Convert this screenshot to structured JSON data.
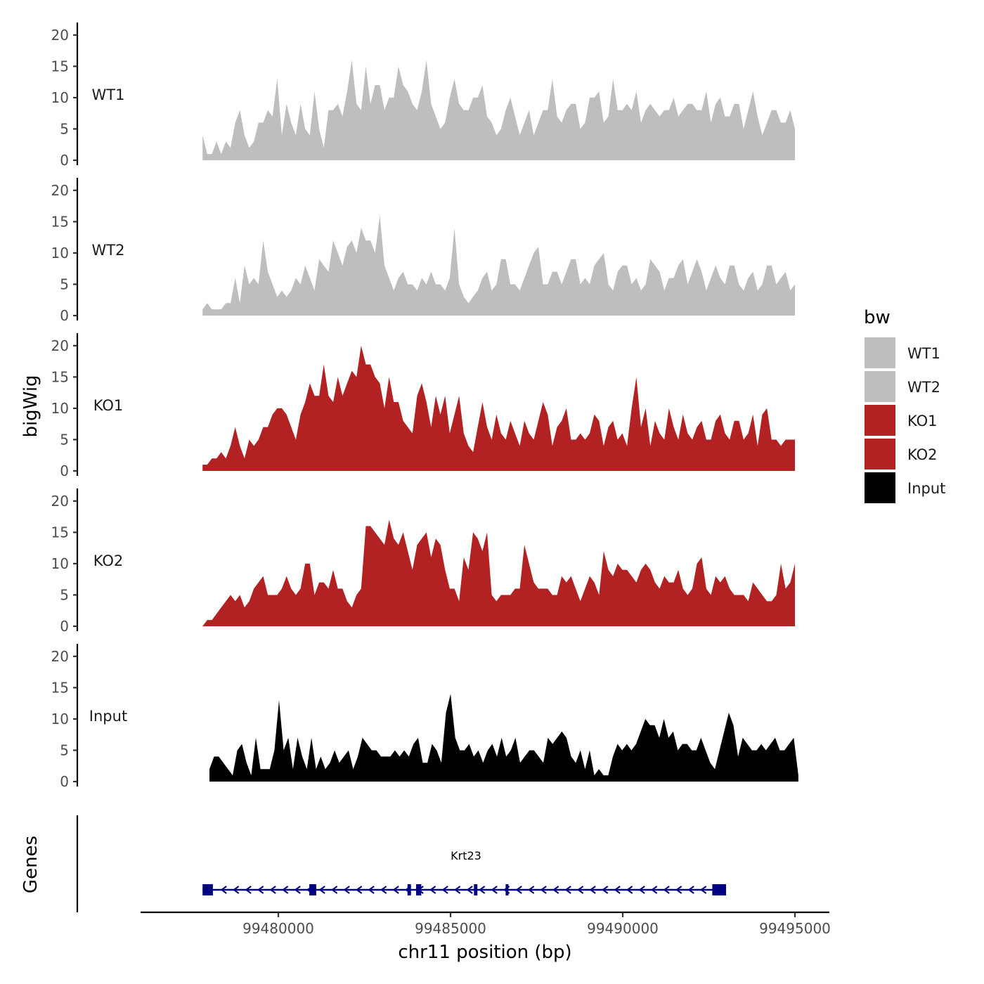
{
  "chart_data": {
    "type": "area",
    "title": "",
    "xlabel": "chr11 position (bp)",
    "ylabel": "bigWig",
    "genes_label": "Genes",
    "xlim": [
      99476000,
      99496000
    ],
    "x_ticks": [
      99480000,
      99485000,
      99490000,
      99495000
    ],
    "x_tick_labels": [
      "99480000",
      "99485000",
      "99490000",
      "99495000"
    ],
    "ylim": [
      0,
      22
    ],
    "y_ticks": [
      0,
      5,
      10,
      15,
      20
    ],
    "y_tick_labels": [
      "0",
      "5",
      "10",
      "15",
      "20"
    ],
    "legend": {
      "title": "bw",
      "position": "right",
      "entries": [
        {
          "label": "WT1",
          "color": "#bebebe"
        },
        {
          "label": "WT2",
          "color": "#bebebe"
        },
        {
          "label": "KO1",
          "color": "#b22222"
        },
        {
          "label": "KO2",
          "color": "#b22222"
        },
        {
          "label": "Input",
          "color": "#000000"
        }
      ]
    },
    "series": [
      {
        "name": "WT1",
        "color": "#bebebe",
        "x_start": 99477800,
        "x_end": 99495000,
        "values": [
          4,
          1,
          1,
          3,
          1,
          3,
          2,
          6,
          8,
          4,
          2,
          3,
          6,
          6,
          8,
          7,
          13,
          4,
          9,
          6,
          4,
          9,
          5,
          4,
          11,
          5,
          2,
          8,
          8,
          9,
          7,
          11,
          16,
          9,
          8,
          15,
          9,
          12,
          12,
          8,
          10,
          10,
          15,
          12,
          11,
          9,
          8,
          11,
          16,
          9,
          7,
          5,
          6,
          10,
          13,
          9,
          8,
          8,
          10,
          10,
          12,
          7,
          6,
          4,
          5,
          8,
          10,
          7,
          4,
          6,
          8,
          4,
          6,
          8,
          8,
          13,
          7,
          6,
          8,
          9,
          9,
          5,
          6,
          10,
          10,
          11,
          6,
          7,
          13,
          8,
          8,
          9,
          8,
          11,
          6,
          8,
          9,
          8,
          7,
          8,
          8,
          10,
          7,
          8,
          9,
          9,
          8,
          8,
          11,
          6,
          9,
          10,
          7,
          7,
          9,
          9,
          5,
          8,
          11,
          7,
          4,
          6,
          8,
          8,
          6,
          6,
          8,
          5
        ]
      },
      {
        "name": "WT2",
        "color": "#bebebe",
        "x_start": 99477800,
        "x_end": 99495000,
        "values": [
          1,
          2,
          1,
          1,
          1,
          2,
          2,
          6,
          2,
          8,
          5,
          6,
          5,
          12,
          7,
          5,
          3,
          4,
          3,
          4,
          6,
          5,
          8,
          6,
          4,
          9,
          8,
          7,
          12,
          10,
          8,
          11,
          12,
          10,
          14,
          12,
          12,
          10,
          16,
          8,
          6,
          4,
          6,
          7,
          5,
          5,
          4,
          6,
          5,
          7,
          5,
          5,
          4,
          6,
          14,
          5,
          3,
          2,
          3,
          4,
          6,
          7,
          4,
          5,
          9,
          9,
          5,
          5,
          4,
          6,
          8,
          10,
          11,
          5,
          5,
          7,
          7,
          5,
          7,
          9,
          9,
          5,
          6,
          5,
          8,
          9,
          10,
          5,
          4,
          7,
          8,
          8,
          5,
          6,
          4,
          5,
          9,
          8,
          7,
          4,
          6,
          6,
          8,
          9,
          5,
          7,
          9,
          7,
          4,
          6,
          8,
          6,
          5,
          8,
          8,
          5,
          4,
          6,
          7,
          4,
          5,
          8,
          8,
          5,
          6,
          7,
          4,
          5
        ]
      },
      {
        "name": "KO1",
        "color": "#b22222",
        "x_start": 99477800,
        "x_end": 99495000,
        "values": [
          1,
          1,
          2,
          2,
          3,
          2,
          4,
          7,
          4,
          2,
          5,
          4,
          5,
          7,
          7,
          9,
          10,
          10,
          9,
          7,
          5,
          9,
          11,
          14,
          12,
          12,
          17,
          12,
          11,
          15,
          12,
          14,
          16,
          15,
          20,
          17,
          17,
          15,
          14,
          10,
          15,
          11,
          11,
          8,
          7,
          6,
          12,
          14,
          11,
          7,
          12,
          9,
          12,
          6,
          9,
          12,
          6,
          4,
          3,
          7,
          11,
          7,
          5,
          9,
          6,
          5,
          8,
          6,
          4,
          8,
          6,
          5,
          8,
          11,
          9,
          4,
          7,
          8,
          10,
          5,
          5,
          6,
          5,
          6,
          9,
          8,
          4,
          7,
          8,
          5,
          6,
          4,
          10,
          15,
          7,
          10,
          4,
          8,
          6,
          5,
          10,
          7,
          5,
          9,
          6,
          5,
          7,
          8,
          5,
          5,
          8,
          9,
          6,
          5,
          8,
          8,
          5,
          6,
          9,
          4,
          9,
          10,
          5,
          5,
          4,
          5,
          5,
          5
        ]
      },
      {
        "name": "KO2",
        "color": "#b22222",
        "x_start": 99477800,
        "x_end": 99495000,
        "values": [
          0,
          1,
          1,
          2,
          3,
          4,
          5,
          4,
          5,
          3,
          4,
          6,
          7,
          8,
          5,
          5,
          5,
          6,
          8,
          6,
          5,
          6,
          10,
          10,
          5,
          7,
          7,
          6,
          9,
          6,
          6,
          4,
          3,
          5,
          6,
          16,
          16,
          15,
          14,
          13,
          17,
          14,
          13,
          15,
          12,
          9,
          13,
          14,
          15,
          11,
          14,
          13,
          9,
          6,
          6,
          4,
          11,
          9,
          15,
          14,
          12,
          15,
          5,
          4,
          5,
          5,
          5,
          6,
          6,
          13,
          10,
          7,
          6,
          6,
          6,
          5,
          5,
          8,
          7,
          8,
          6,
          4,
          6,
          8,
          7,
          5,
          12,
          9,
          8,
          10,
          9,
          9,
          8,
          7,
          9,
          10,
          9,
          7,
          6,
          8,
          7,
          7,
          9,
          6,
          5,
          6,
          10,
          11,
          6,
          5,
          8,
          7,
          8,
          6,
          5,
          5,
          5,
          4,
          7,
          6,
          5,
          4,
          4,
          5,
          10,
          6,
          7,
          10
        ]
      },
      {
        "name": "Input",
        "color": "#000000",
        "x_start": 99478000,
        "x_end": 99495100,
        "values": [
          2,
          4,
          4,
          3,
          2,
          1,
          5,
          6,
          3,
          1,
          7,
          2,
          2,
          2,
          5,
          13,
          5,
          7,
          2,
          7,
          4,
          2,
          7,
          2,
          4,
          2,
          3,
          5,
          3,
          4,
          5,
          2,
          4,
          7,
          6,
          5,
          5,
          4,
          4,
          4,
          5,
          4,
          5,
          4,
          6,
          7,
          3,
          3,
          6,
          5,
          3,
          11,
          14,
          7,
          5,
          5,
          6,
          4,
          5,
          3,
          5,
          6,
          4,
          7,
          4,
          5,
          7,
          3,
          4,
          5,
          5,
          4,
          3,
          7,
          6,
          7,
          8,
          7,
          4,
          3,
          5,
          2,
          5,
          1,
          2,
          1,
          1,
          4,
          6,
          5,
          6,
          5,
          6,
          8,
          10,
          9,
          9,
          7,
          10,
          7,
          8,
          5,
          6,
          6,
          5,
          5,
          7,
          5,
          3,
          2,
          5,
          8,
          11,
          9,
          4,
          7,
          6,
          5,
          5,
          6,
          5,
          6,
          7,
          5,
          5,
          6,
          7,
          1
        ]
      }
    ],
    "genes": [
      {
        "name": "Krt23",
        "color": "#000080",
        "strand": "-",
        "start": 99477800,
        "end": 99493000,
        "exons": [
          [
            99477800,
            99478100
          ],
          [
            99480900,
            99481100
          ],
          [
            99483750,
            99483850
          ],
          [
            99484000,
            99484150
          ],
          [
            99485680,
            99485780
          ],
          [
            99486600,
            99486650
          ],
          [
            99492600,
            99493000
          ]
        ]
      }
    ]
  }
}
